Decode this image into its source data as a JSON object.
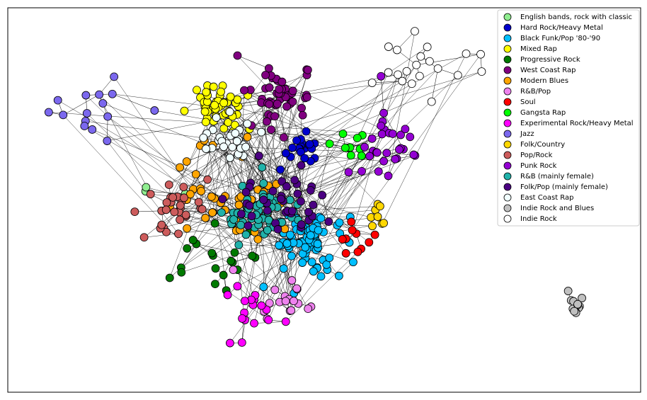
{
  "legend": {
    "entries": [
      {
        "label": "English bands, rock with classic",
        "color": "#90ee90"
      },
      {
        "label": "Hard Rock/Heavy Metal",
        "color": "#0000cd"
      },
      {
        "label": "Black Funk/Pop '80-'90",
        "color": "#00bfff"
      },
      {
        "label": "Mixed Rap",
        "color": "#ffff00"
      },
      {
        "label": "Progressive Rock",
        "color": "#007a00"
      },
      {
        "label": "West Coast Rap",
        "color": "#800080"
      },
      {
        "label": "Modern Blues",
        "color": "#ffa500"
      },
      {
        "label": "R&B/Pop",
        "color": "#ee82ee"
      },
      {
        "label": "Soul",
        "color": "#ff0000"
      },
      {
        "label": "Gangsta Rap",
        "color": "#00ff00"
      },
      {
        "label": "Experimental Rock/Heavy Metal",
        "color": "#ff00ff"
      },
      {
        "label": "Jazz",
        "color": "#7b68ee"
      },
      {
        "label": "Folk/Country",
        "color": "#ffd700"
      },
      {
        "label": "Pop/Rock",
        "color": "#cd5c5c"
      },
      {
        "label": "Punk Rock",
        "color": "#9400d3"
      },
      {
        "label": "R&B (mainly female)",
        "color": "#20b2aa"
      },
      {
        "label": "Folk/Pop (mainly female)",
        "color": "#4b0082"
      },
      {
        "label": "East Coast Rap",
        "color": "#f0ffff"
      },
      {
        "label": "Indie Rock and Blues",
        "color": "#c0c0c0"
      },
      {
        "label": "Indie Rock",
        "color": "#ffffff"
      }
    ]
  }
}
